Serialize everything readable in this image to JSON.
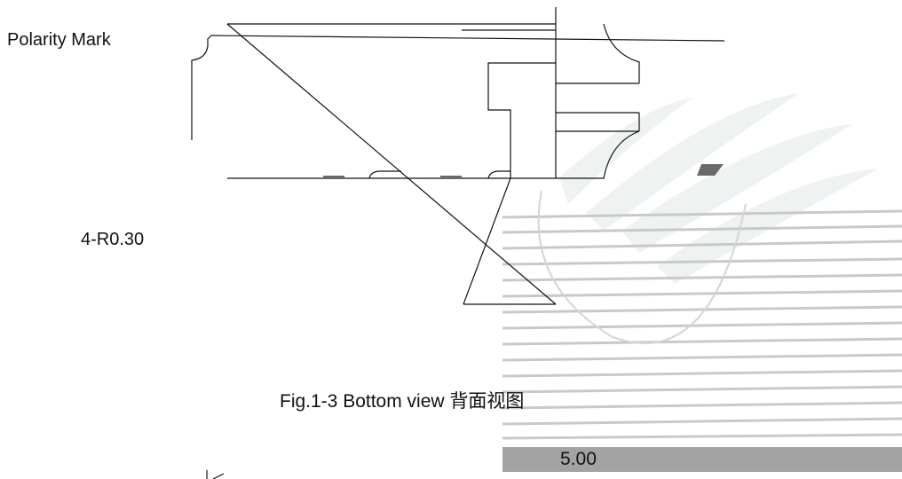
{
  "labels": {
    "polarity_mark": "Polarity Mark",
    "corner_radius": "4-R0.30",
    "caption": "Fig.1-3 Bottom view 背面视图",
    "dimension": "5.00"
  },
  "colors": {
    "line": "#111111",
    "dimension_bar": "#a3a3a3",
    "shadow_stroke": "#c9c9c9",
    "ghost_fill": "#eef3f2"
  }
}
